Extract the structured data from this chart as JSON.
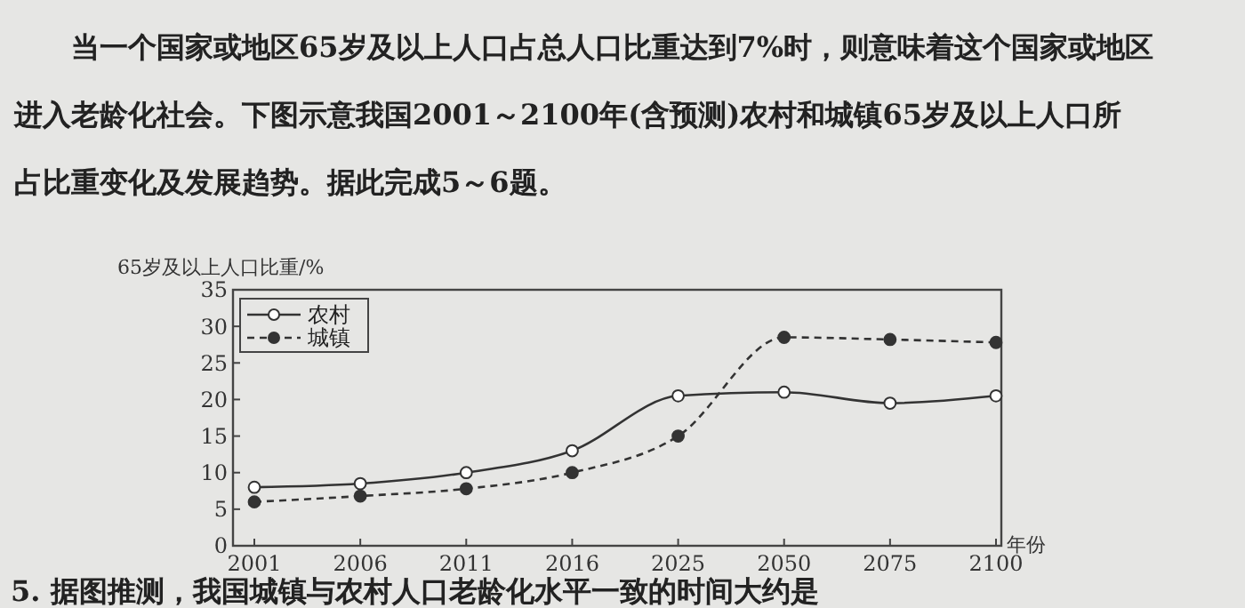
{
  "chart_data": {
    "type": "line",
    "ylabel": "65岁及以上人口比重/%",
    "xlabel": "年份",
    "categories": [
      "2001",
      "2006",
      "2011",
      "2016",
      "2025",
      "2050",
      "2075",
      "2100"
    ],
    "series": [
      {
        "name": "农村",
        "color": "#333333",
        "values": [
          8,
          8.5,
          10,
          13,
          20.5,
          21,
          19.5,
          20.5
        ],
        "line_style": "solid"
      },
      {
        "name": "城镇",
        "color": "#333333",
        "values": [
          6,
          6.8,
          7.8,
          10,
          15,
          28.5,
          28.2,
          27.8
        ],
        "line_style": "dashed"
      }
    ],
    "ylim": [
      0,
      35
    ],
    "yticks": [
      0,
      5,
      10,
      15,
      20,
      25,
      30,
      35
    ],
    "legend": "top left",
    "marker": "circle",
    "annotations": [
      "当一个国家或地区65岁及以上人口占总人口比重达到7%时，则意味着这个国家或地区进入老龄化社会。下图示意我国2001～2100年(含预测)农村和城镇65岁及以上人口所占比重变化及发展趋势。据此完成5～6题。",
      "5. 据图推测，我国城镇与农村人口老龄化水平一致的时间大约是"
    ]
  }
}
